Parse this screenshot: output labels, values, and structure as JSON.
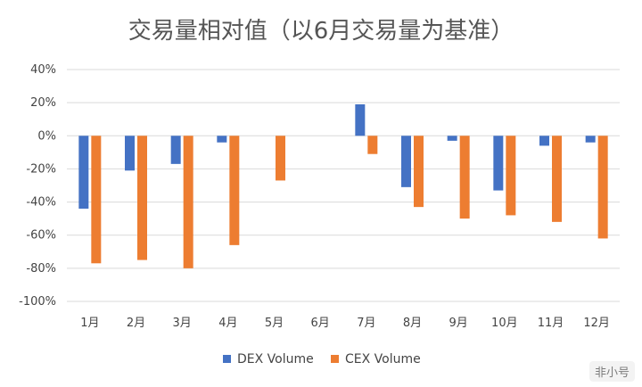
{
  "chart_data": {
    "type": "bar",
    "title": "交易量相对值（以6月交易量为基准）",
    "categories": [
      "1月",
      "2月",
      "3月",
      "4月",
      "5月",
      "6月",
      "7月",
      "8月",
      "9月",
      "10月",
      "11月",
      "12月"
    ],
    "series": [
      {
        "name": "DEX Volume",
        "color": "#4472C4",
        "values": [
          -44,
          -21,
          -17,
          -4,
          0,
          0,
          19,
          -31,
          -3,
          -33,
          -6,
          -4
        ]
      },
      {
        "name": "CEX Volume",
        "color": "#ED7D31",
        "values": [
          -77,
          -75,
          -80,
          -66,
          -27,
          0,
          -11,
          -43,
          -50,
          -48,
          -52,
          -62
        ]
      }
    ],
    "y_ticks": [
      "40%",
      "20%",
      "0%",
      "-20%",
      "-40%",
      "-60%",
      "-80%",
      "-100%"
    ],
    "ylim": [
      -100,
      40
    ],
    "grid": true,
    "legend": "bottom"
  },
  "watermark": "非小号"
}
